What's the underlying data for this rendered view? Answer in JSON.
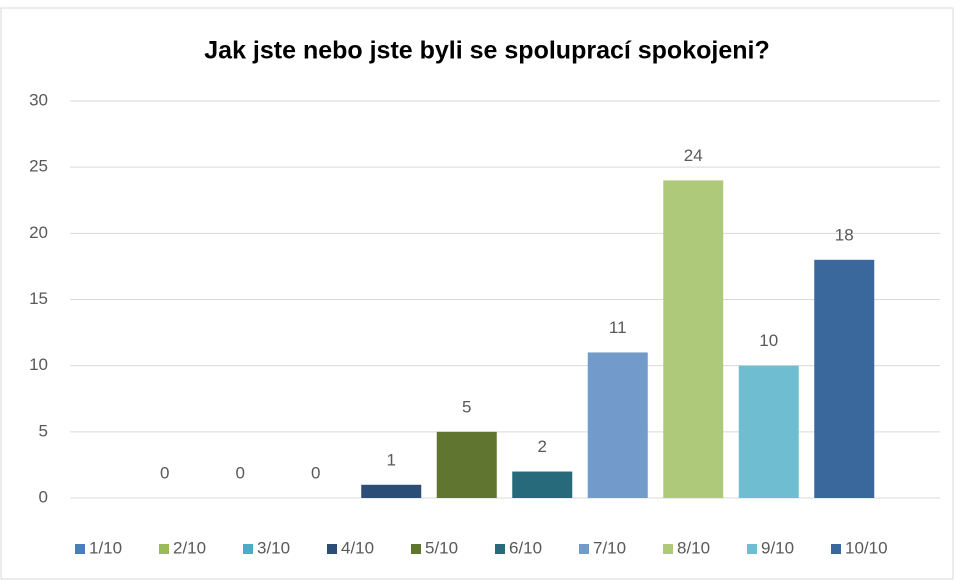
{
  "chart_data": {
    "type": "bar",
    "title": "Jak jste nebo jste byli se spoluprací spokojeni?",
    "categories": [
      "1/10",
      "2/10",
      "3/10",
      "4/10",
      "5/10",
      "6/10",
      "7/10",
      "8/10",
      "9/10",
      "10/10"
    ],
    "values": [
      0,
      0,
      0,
      1,
      5,
      2,
      11,
      24,
      10,
      18
    ],
    "colors": [
      "#4a7ebb",
      "#9bbb59",
      "#4bacc6",
      "#2c4d75",
      "#5f7530",
      "#276a7c",
      "#729aca",
      "#afc97a",
      "#6fbdd1",
      "#3a679c"
    ],
    "ylim": [
      0,
      30
    ],
    "yticks": [
      0,
      5,
      10,
      15,
      20,
      25,
      30
    ],
    "grid": true,
    "legend": "bottom"
  }
}
